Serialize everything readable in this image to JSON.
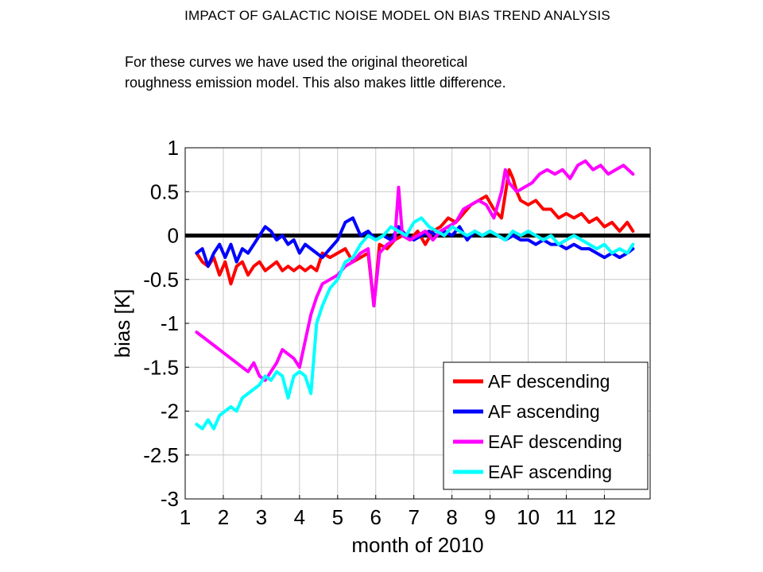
{
  "page": {
    "heading": "IMPACT OF GALACTIC NOISE MODEL ON BIAS TREND ANALYSIS",
    "note_line1": "For these curves we have used the original theoretical",
    "note_line2": "roughness emission model. This also makes little difference."
  },
  "chart_data": {
    "type": "line",
    "title": "",
    "xlabel": "month of 2010",
    "ylabel": "bias [K]",
    "xlim": [
      1,
      13.2
    ],
    "ylim": [
      -3,
      1
    ],
    "xticks": [
      1,
      2,
      3,
      4,
      5,
      6,
      7,
      8,
      9,
      10,
      11,
      12
    ],
    "yticks": [
      1,
      0.5,
      0,
      -0.5,
      -1,
      -1.5,
      -2,
      -2.5,
      -3
    ],
    "ytick_labels": [
      "1",
      "0.5",
      "0",
      "-0.5",
      "-1",
      "-1.5",
      "-2",
      "-2.5",
      "-3"
    ],
    "grid": true,
    "legend_position": "bottom-right",
    "reference_line": {
      "y": 0,
      "color": "#000000"
    },
    "series": [
      {
        "name": "AF descending",
        "color": "#ff0000",
        "x": [
          1.3,
          1.45,
          1.6,
          1.75,
          1.9,
          2.05,
          2.2,
          2.35,
          2.5,
          2.65,
          2.8,
          2.95,
          3.1,
          3.25,
          3.4,
          3.55,
          3.7,
          3.85,
          4.0,
          4.15,
          4.3,
          4.45,
          4.6,
          4.8,
          5.0,
          5.2,
          5.4,
          5.6,
          5.8,
          5.95,
          6.1,
          6.3,
          6.5,
          6.7,
          6.9,
          7.1,
          7.3,
          7.5,
          7.7,
          7.9,
          8.1,
          8.3,
          8.5,
          8.7,
          8.9,
          9.1,
          9.3,
          9.5,
          9.6,
          9.7,
          9.8,
          10.0,
          10.2,
          10.4,
          10.6,
          10.8,
          11.0,
          11.2,
          11.4,
          11.6,
          11.8,
          12.0,
          12.2,
          12.4,
          12.6,
          12.75
        ],
        "y": [
          -0.2,
          -0.3,
          -0.35,
          -0.25,
          -0.45,
          -0.3,
          -0.55,
          -0.35,
          -0.3,
          -0.45,
          -0.35,
          -0.3,
          -0.4,
          -0.35,
          -0.3,
          -0.4,
          -0.35,
          -0.4,
          -0.35,
          -0.4,
          -0.35,
          -0.4,
          -0.2,
          -0.25,
          -0.2,
          -0.15,
          -0.3,
          -0.25,
          -0.2,
          -0.8,
          -0.1,
          -0.15,
          -0.05,
          0.0,
          -0.05,
          0.05,
          -0.1,
          0.05,
          0.1,
          0.2,
          0.15,
          0.25,
          0.35,
          0.4,
          0.45,
          0.3,
          0.2,
          0.75,
          0.65,
          0.5,
          0.4,
          0.35,
          0.4,
          0.3,
          0.3,
          0.2,
          0.25,
          0.2,
          0.25,
          0.15,
          0.2,
          0.1,
          0.15,
          0.05,
          0.15,
          0.05
        ]
      },
      {
        "name": "AF ascending",
        "color": "#0000ff",
        "x": [
          1.3,
          1.45,
          1.6,
          1.75,
          1.9,
          2.05,
          2.2,
          2.35,
          2.5,
          2.65,
          2.8,
          2.95,
          3.1,
          3.25,
          3.4,
          3.55,
          3.7,
          3.85,
          4.0,
          4.15,
          4.3,
          4.45,
          4.6,
          4.8,
          5.0,
          5.2,
          5.4,
          5.6,
          5.8,
          6.0,
          6.2,
          6.4,
          6.6,
          6.8,
          7.0,
          7.2,
          7.4,
          7.6,
          7.8,
          8.0,
          8.2,
          8.4,
          8.6,
          8.8,
          9.0,
          9.2,
          9.4,
          9.6,
          9.8,
          10.0,
          10.2,
          10.4,
          10.6,
          10.8,
          11.0,
          11.2,
          11.4,
          11.6,
          11.8,
          12.0,
          12.2,
          12.4,
          12.6,
          12.75
        ],
        "y": [
          -0.2,
          -0.15,
          -0.35,
          -0.2,
          -0.1,
          -0.25,
          -0.1,
          -0.3,
          -0.15,
          -0.2,
          -0.1,
          0.0,
          0.1,
          0.05,
          -0.05,
          0.0,
          -0.1,
          -0.05,
          -0.2,
          -0.1,
          -0.15,
          -0.2,
          -0.25,
          -0.15,
          -0.05,
          0.15,
          0.2,
          0.0,
          0.05,
          -0.05,
          0.0,
          -0.05,
          0.1,
          0.0,
          -0.05,
          0.0,
          0.05,
          0.0,
          0.05,
          0.0,
          0.1,
          -0.05,
          0.05,
          0.0,
          0.05,
          0.0,
          -0.05,
          0.0,
          -0.05,
          -0.05,
          -0.1,
          -0.05,
          -0.1,
          -0.1,
          -0.15,
          -0.1,
          -0.15,
          -0.15,
          -0.2,
          -0.25,
          -0.2,
          -0.25,
          -0.2,
          -0.15
        ]
      },
      {
        "name": "EAF descending",
        "color": "#ff00ff",
        "x": [
          1.3,
          1.45,
          1.6,
          1.75,
          1.9,
          2.05,
          2.2,
          2.35,
          2.5,
          2.65,
          2.8,
          2.95,
          3.1,
          3.25,
          3.4,
          3.55,
          3.7,
          3.85,
          4.0,
          4.15,
          4.3,
          4.45,
          4.6,
          4.8,
          5.0,
          5.2,
          5.4,
          5.6,
          5.8,
          5.95,
          6.1,
          6.3,
          6.5,
          6.6,
          6.7,
          6.9,
          7.1,
          7.3,
          7.5,
          7.7,
          7.9,
          8.1,
          8.3,
          8.5,
          8.7,
          8.9,
          9.1,
          9.3,
          9.4,
          9.5,
          9.7,
          9.9,
          10.1,
          10.3,
          10.5,
          10.7,
          10.9,
          11.1,
          11.3,
          11.5,
          11.7,
          11.9,
          12.1,
          12.3,
          12.5,
          12.75
        ],
        "y": [
          -1.1,
          -1.15,
          -1.2,
          -1.25,
          -1.3,
          -1.35,
          -1.4,
          -1.45,
          -1.5,
          -1.55,
          -1.45,
          -1.6,
          -1.65,
          -1.55,
          -1.45,
          -1.3,
          -1.35,
          -1.4,
          -1.5,
          -1.2,
          -0.9,
          -0.7,
          -0.55,
          -0.5,
          -0.45,
          -0.35,
          -0.3,
          -0.2,
          -0.15,
          -0.8,
          -0.2,
          -0.1,
          -0.05,
          0.55,
          0.0,
          -0.05,
          0.0,
          0.05,
          -0.05,
          0.05,
          0.1,
          0.15,
          0.3,
          0.35,
          0.4,
          0.35,
          0.2,
          0.5,
          0.75,
          0.6,
          0.5,
          0.55,
          0.6,
          0.7,
          0.75,
          0.7,
          0.75,
          0.65,
          0.8,
          0.85,
          0.75,
          0.8,
          0.7,
          0.75,
          0.8,
          0.7
        ]
      },
      {
        "name": "EAF ascending",
        "color": "#00ffff",
        "x": [
          1.3,
          1.45,
          1.6,
          1.75,
          1.9,
          2.05,
          2.2,
          2.35,
          2.5,
          2.65,
          2.8,
          2.95,
          3.1,
          3.25,
          3.4,
          3.55,
          3.7,
          3.85,
          4.0,
          4.15,
          4.3,
          4.45,
          4.6,
          4.8,
          5.0,
          5.2,
          5.4,
          5.6,
          5.8,
          6.0,
          6.2,
          6.4,
          6.6,
          6.8,
          7.0,
          7.2,
          7.4,
          7.6,
          7.8,
          8.0,
          8.2,
          8.4,
          8.6,
          8.8,
          9.0,
          9.2,
          9.4,
          9.6,
          9.8,
          10.0,
          10.2,
          10.4,
          10.6,
          10.8,
          11.0,
          11.2,
          11.4,
          11.6,
          11.8,
          12.0,
          12.2,
          12.4,
          12.6,
          12.75
        ],
        "y": [
          -2.15,
          -2.2,
          -2.1,
          -2.2,
          -2.05,
          -2.0,
          -1.95,
          -2.0,
          -1.85,
          -1.8,
          -1.75,
          -1.7,
          -1.6,
          -1.65,
          -1.55,
          -1.6,
          -1.85,
          -1.6,
          -1.55,
          -1.6,
          -1.8,
          -1.0,
          -0.8,
          -0.6,
          -0.5,
          -0.3,
          -0.25,
          -0.1,
          0.0,
          -0.05,
          0.0,
          0.1,
          0.05,
          0.0,
          0.15,
          0.2,
          0.1,
          0.05,
          0.0,
          0.1,
          0.05,
          0.0,
          0.05,
          0.0,
          0.05,
          0.0,
          -0.05,
          0.05,
          0.0,
          0.05,
          0.0,
          -0.05,
          0.0,
          -0.1,
          -0.05,
          0.0,
          -0.05,
          -0.1,
          -0.15,
          -0.1,
          -0.2,
          -0.15,
          -0.2,
          -0.1
        ]
      }
    ]
  }
}
